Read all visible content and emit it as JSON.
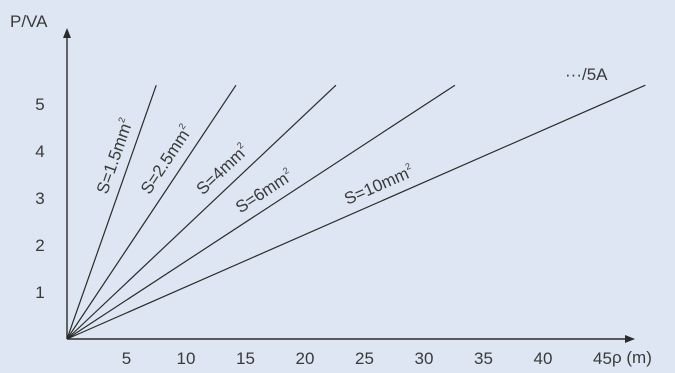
{
  "chart_data": {
    "type": "line",
    "title": "",
    "xlabel": "ρ (m)",
    "ylabel": "P/VA",
    "xlim": [
      0,
      51
    ],
    "ylim": [
      0,
      6.9
    ],
    "x_ticks": [
      5,
      10,
      15,
      20,
      25,
      30,
      35,
      40,
      45
    ],
    "y_ticks": [
      1,
      2,
      3,
      4,
      5
    ],
    "grid": false,
    "annotation": "···/5A",
    "series": [
      {
        "label_main": "S=1.5mm",
        "label_sup": "2",
        "x": [
          0,
          7.5
        ],
        "y": [
          0,
          5.4
        ]
      },
      {
        "label_main": "S=2.5mm",
        "label_sup": "2",
        "x": [
          0,
          14.2
        ],
        "y": [
          0,
          5.4
        ]
      },
      {
        "label_main": "S=4mm",
        "label_sup": "2",
        "x": [
          0,
          22.6
        ],
        "y": [
          0,
          5.4
        ]
      },
      {
        "label_main": "S=6mm",
        "label_sup": "2",
        "x": [
          0,
          32.6
        ],
        "y": [
          0,
          5.4
        ]
      },
      {
        "label_main": "S=10mm",
        "label_sup": "2",
        "x": [
          0,
          48.6
        ],
        "y": [
          0,
          5.4
        ]
      }
    ]
  }
}
